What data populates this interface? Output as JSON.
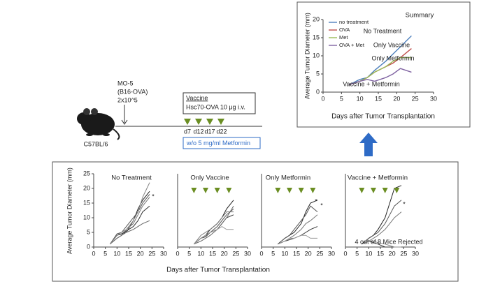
{
  "chart_data": [
    {
      "type": "line",
      "title": "Summary",
      "ylabel": "Average Tumor Diameter  (mm)",
      "xlabel": "Days after Tumor Transplantation",
      "x": [
        7,
        10,
        12,
        14,
        17,
        19,
        21,
        24
      ],
      "series": [
        {
          "name": "no treatment",
          "color": "#4f81bd",
          "values": [
            2,
            3.5,
            4,
            6,
            8.5,
            10.5,
            12.5,
            15.5
          ]
        },
        {
          "name": "OVA",
          "color": "#c0504d",
          "values": [
            2,
            3,
            4,
            5.5,
            7,
            8,
            9.5,
            12
          ]
        },
        {
          "name": "Met",
          "color": "#9bbb59",
          "values": [
            2,
            3,
            4,
            5.5,
            7,
            8.5,
            9.5,
            9.5
          ]
        },
        {
          "name": "OVA + Met",
          "color": "#8064a2",
          "values": [
            2,
            3,
            3.5,
            3,
            4,
            5,
            6.5,
            5.5
          ]
        }
      ],
      "xlim": [
        0,
        30
      ],
      "ylim": [
        0,
        20
      ],
      "xticks": [
        0,
        5,
        10,
        15,
        20,
        25,
        30
      ],
      "yticks": [
        0,
        5,
        10,
        15,
        20
      ],
      "annotations": [
        "No Treatment",
        "Only Vaccine",
        "Only Metformin",
        "Vaccine + Metformin"
      ]
    },
    {
      "type": "line",
      "title": "No Treatment",
      "ylabel": "Average Tumor Diameter  (mm)",
      "x": [
        7,
        10,
        12,
        14,
        17,
        19,
        21,
        24
      ],
      "series": [
        {
          "color": "#222",
          "values": [
            1,
            4,
            4.5,
            5,
            9,
            13,
            16,
            19
          ]
        },
        {
          "color": "#555",
          "values": [
            1,
            4.5,
            5,
            7,
            10,
            12,
            15,
            18
          ]
        },
        {
          "color": "#777",
          "values": [
            1,
            3,
            4,
            6,
            8,
            11,
            14,
            17
          ]
        },
        {
          "color": "#333",
          "values": [
            1,
            4,
            4.5,
            5.5,
            7,
            9,
            12,
            14
          ]
        },
        {
          "color": "#666",
          "values": [
            1,
            3,
            4,
            5,
            6,
            7,
            8,
            9
          ]
        },
        {
          "color": "#888",
          "values": [
            1,
            4,
            5,
            6,
            9,
            12,
            17,
            22
          ]
        }
      ],
      "xlim": [
        0,
        30
      ],
      "ylim": [
        0,
        25
      ],
      "xticks": [
        0,
        5,
        10,
        15,
        20,
        25,
        30
      ],
      "yticks": [
        0,
        5,
        10,
        15,
        20,
        25
      ],
      "annotations": [
        "*"
      ]
    },
    {
      "type": "line",
      "title": "Only Vaccine",
      "x": [
        7,
        10,
        12,
        14,
        17,
        19,
        21,
        24
      ],
      "series": [
        {
          "color": "#222",
          "values": [
            1,
            3,
            4,
            6,
            8,
            10,
            13,
            16
          ]
        },
        {
          "color": "#555",
          "values": [
            1,
            3,
            4,
            5,
            7,
            9,
            11,
            13
          ]
        },
        {
          "color": "#777",
          "values": [
            1,
            4,
            5,
            6,
            8,
            10,
            12,
            12
          ]
        },
        {
          "color": "#333",
          "values": [
            1,
            3,
            3.5,
            5,
            6,
            8,
            10,
            11
          ]
        },
        {
          "color": "#666",
          "values": [
            1,
            2,
            3,
            4,
            6,
            8,
            10,
            14
          ]
        },
        {
          "color": "#999",
          "values": [
            1,
            3,
            4,
            5,
            6,
            7,
            6,
            6
          ]
        }
      ],
      "xlim": [
        0,
        30
      ],
      "ylim": [
        0,
        25
      ],
      "xticks": [
        0,
        5,
        10,
        15,
        20,
        25,
        30
      ],
      "vaccine_days": [
        7,
        12,
        17,
        22
      ],
      "annotations": []
    },
    {
      "type": "line",
      "title": "Only Metformin",
      "x": [
        7,
        10,
        12,
        14,
        17,
        19,
        21,
        24
      ],
      "series": [
        {
          "color": "#222",
          "values": [
            1,
            3,
            4,
            5,
            8,
            12,
            15,
            16
          ]
        },
        {
          "color": "#555",
          "values": [
            1,
            3,
            4,
            6,
            9,
            11,
            14,
            12
          ]
        },
        {
          "color": "#777",
          "values": [
            1,
            2,
            3,
            4,
            6,
            8,
            9,
            11
          ]
        },
        {
          "color": "#333",
          "values": [
            1,
            2,
            2.5,
            3,
            4,
            5,
            6,
            7
          ]
        },
        {
          "color": "#999",
          "values": [
            1,
            2,
            3,
            3,
            4,
            4,
            3,
            3
          ]
        }
      ],
      "xlim": [
        0,
        30
      ],
      "ylim": [
        0,
        25
      ],
      "xticks": [
        0,
        5,
        10,
        15,
        20,
        25,
        30
      ],
      "vaccine_days": [
        7,
        12,
        17,
        22
      ],
      "annotations": [
        "*",
        "*"
      ]
    },
    {
      "type": "line",
      "title": "Vaccine + Metformin",
      "x": [
        7,
        10,
        12,
        14,
        17,
        19,
        21,
        24
      ],
      "series": [
        {
          "color": "#222",
          "values": [
            1,
            3,
            4,
            6,
            10,
            15,
            20,
            21
          ]
        },
        {
          "color": "#555",
          "values": [
            1,
            3,
            4,
            5,
            8,
            11,
            14,
            16
          ]
        },
        {
          "color": "#777",
          "values": [
            1,
            2,
            3,
            4,
            6,
            8,
            10,
            12
          ]
        },
        {
          "color": "#333",
          "values": [
            1,
            2,
            1.5,
            1,
            0,
            0,
            0,
            0
          ]
        },
        {
          "color": "#888",
          "values": [
            1,
            2,
            2,
            1.5,
            1,
            0.5,
            0,
            0
          ]
        }
      ],
      "xlim": [
        0,
        30
      ],
      "ylim": [
        0,
        25
      ],
      "xticks": [
        0,
        5,
        10,
        15,
        20,
        25,
        30
      ],
      "vaccine_days": [
        7,
        12,
        17,
        22
      ],
      "annotations": [
        "*",
        "4 out of 8 Mice Rejected"
      ]
    }
  ],
  "panels_xlabel": "Days after Tumor Transplantation",
  "scheme": {
    "tumor": [
      "MO-5",
      "(B16-OVA)",
      "2x10^5"
    ],
    "mouse": "C57BL/6",
    "vaccine_title": "Vaccine",
    "vaccine_dose": "Hsc70-OVA 10 μg i.v.",
    "days": [
      "d7",
      "d12",
      "d17",
      "d22"
    ],
    "metformin": "w/o 5 mg/ml Metformin"
  }
}
